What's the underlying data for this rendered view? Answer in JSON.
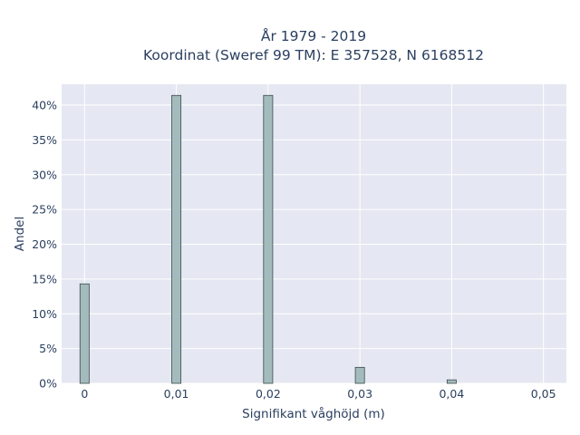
{
  "chart_data": {
    "type": "bar",
    "title": "År 1979 - 2019",
    "subtitle": "Koordinat (Sweref 99 TM): E 357528, N 6168512",
    "xlabel": "Signifikant våghöjd (m)",
    "ylabel": "Andel",
    "x": [
      0,
      0.01,
      0.02,
      0.03,
      0.04
    ],
    "values": [
      14.3,
      41.4,
      41.4,
      2.3,
      0.5
    ],
    "bar_width": 0.001,
    "xlim": [
      -0.0025,
      0.0525
    ],
    "ylim": [
      0,
      43
    ],
    "x_ticks": [
      0,
      0.01,
      0.02,
      0.03,
      0.04,
      0.05
    ],
    "x_tick_labels": [
      "0",
      "0,01",
      "0,02",
      "0,03",
      "0,04",
      "0,05"
    ],
    "y_ticks": [
      0,
      5,
      10,
      15,
      20,
      25,
      30,
      35,
      40
    ],
    "y_tick_labels": [
      "0%",
      "5%",
      "10%",
      "15%",
      "20%",
      "25%",
      "30%",
      "35%",
      "40%"
    ],
    "grid": true,
    "colors": {
      "bar_fill": "#a3bbbc",
      "bar_stroke": "#3d4a4b",
      "plot_bg": "#e5e8f2",
      "grid": "#ffffff",
      "text": "#2a3f5f"
    }
  }
}
